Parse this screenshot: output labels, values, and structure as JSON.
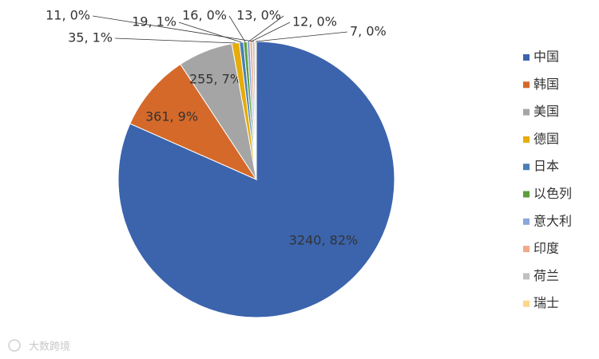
{
  "chart_data": {
    "type": "pie",
    "categories": [
      "中国",
      "韩国",
      "美国",
      "德国",
      "日本",
      "以色列",
      "意大利",
      "印度",
      "荷兰",
      "瑞士"
    ],
    "values": [
      3240,
      361,
      255,
      35,
      19,
      16,
      13,
      12,
      11,
      7
    ],
    "value_labels": [
      "3240, 82%",
      "361, 9%",
      "255, 7%",
      "35, 1%",
      "19, 1%",
      "16, 0%",
      "13, 0%",
      "12, 0%",
      "11, 0%",
      "7, 0%"
    ],
    "colors": [
      "#3b64ad",
      "#d4692a",
      "#a5a5a5",
      "#e5ac0a",
      "#4a7fb5",
      "#5c9e3c",
      "#8aa6dc",
      "#f0a98b",
      "#c0c0c0",
      "#fdd68a"
    ],
    "legend": "right"
  },
  "watermark": "大数跨境"
}
